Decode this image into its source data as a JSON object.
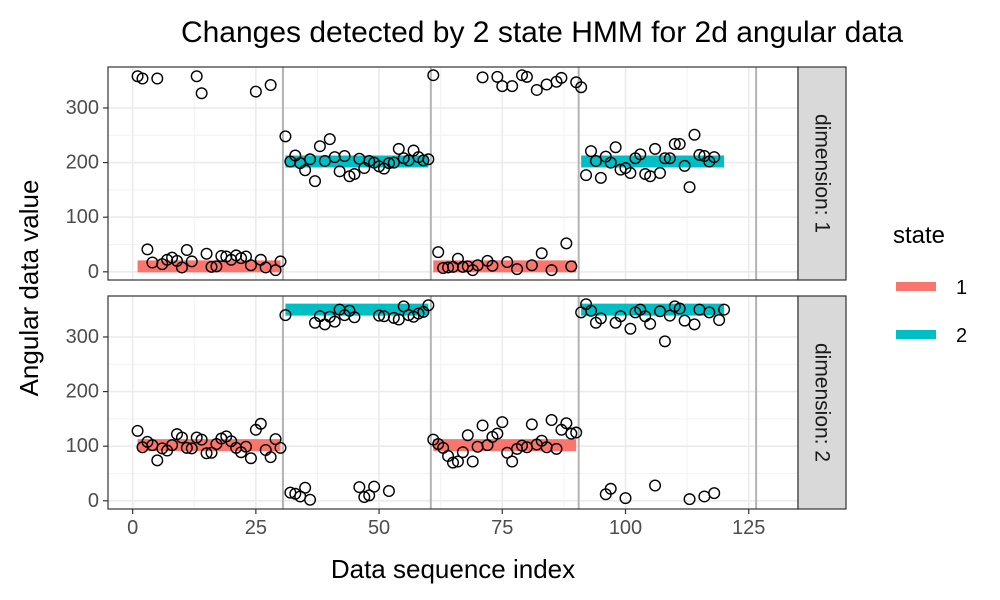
{
  "chart_data": {
    "type": "scatter",
    "title": "Changes detected by 2 state HMM for 2d angular data",
    "xlabel": "Data sequence index",
    "ylabel": "Angular data value",
    "xlim": [
      -5,
      135
    ],
    "ylim": [
      -15,
      375
    ],
    "x_ticks": [
      0,
      25,
      50,
      75,
      100,
      125
    ],
    "y_ticks": [
      0,
      100,
      200,
      300
    ],
    "grid": true,
    "legend": {
      "title": "state",
      "placement": "right",
      "entries": [
        {
          "label": "1",
          "color": "#F8766D"
        },
        {
          "label": "2",
          "color": "#00BFC4"
        }
      ]
    },
    "changepoints": [
      30.5,
      60.5,
      90.5,
      126.5
    ],
    "panels": [
      {
        "strip": "dimension: 1",
        "segments": [
          {
            "state": 1,
            "x_start": 1,
            "x_end": 30,
            "value": 10
          },
          {
            "state": 2,
            "x_start": 31,
            "x_end": 60,
            "value": 202
          },
          {
            "state": 1,
            "x_start": 61,
            "x_end": 90,
            "value": 10
          },
          {
            "state": 2,
            "x_start": 91,
            "x_end": 120,
            "value": 202
          }
        ],
        "y": [
          358,
          354,
          41,
          17,
          354,
          14,
          22,
          26,
          20,
          8,
          40,
          19,
          358,
          327,
          33,
          9,
          10,
          29,
          28,
          22,
          30,
          25,
          28,
          12,
          330,
          22,
          8,
          342,
          3,
          19,
          248,
          202,
          213,
          199,
          186,
          206,
          166,
          230,
          203,
          243,
          210,
          184,
          212,
          175,
          179,
          207,
          190,
          203,
          200,
          193,
          189,
          199,
          200,
          225,
          208,
          204,
          222,
          210,
          204,
          206,
          360,
          36,
          7,
          8,
          9,
          24,
          9,
          10,
          3,
          12,
          356,
          20,
          11,
          357,
          340,
          18,
          340,
          5,
          360,
          357,
          12,
          333,
          34,
          343,
          3,
          348,
          355,
          52,
          10,
          347,
          338,
          177,
          221,
          203,
          172,
          211,
          200,
          228,
          187,
          190,
          181,
          208,
          215,
          179,
          175,
          225,
          181,
          208,
          208,
          234,
          234,
          194,
          155,
          251,
          214,
          212,
          202,
          210,
          null,
          null
        ]
      },
      {
        "strip": "dimension: 2",
        "segments": [
          {
            "state": 1,
            "x_start": 1,
            "x_end": 30,
            "value": 102
          },
          {
            "state": 2,
            "x_start": 31,
            "x_end": 60,
            "value": 350
          },
          {
            "state": 1,
            "x_start": 61,
            "x_end": 90,
            "value": 102
          },
          {
            "state": 2,
            "x_start": 91,
            "x_end": 120,
            "value": 350
          }
        ],
        "y": [
          128,
          98,
          108,
          102,
          74,
          96,
          92,
          102,
          122,
          116,
          97,
          96,
          116,
          112,
          87,
          88,
          104,
          114,
          118,
          109,
          97,
          89,
          99,
          78,
          130,
          141,
          93,
          80,
          113,
          97,
          340,
          15,
          13,
          8,
          24,
          2,
          326,
          338,
          323,
          337,
          328,
          350,
          340,
          348,
          336,
          25,
          7,
          10,
          26,
          339,
          338,
          18,
          335,
          332,
          356,
          340,
          337,
          343,
          346,
          358,
          112,
          104,
          97,
          82,
          70,
          72,
          89,
          120,
          72,
          99,
          138,
          102,
          117,
          123,
          144,
          88,
          72,
          95,
          101,
          98,
          140,
          103,
          110,
          98,
          148,
          95,
          130,
          142,
          123,
          125,
          345,
          360,
          348,
          326,
          334,
          12,
          22,
          326,
          338,
          5,
          315,
          345,
          350,
          338,
          324,
          28,
          347,
          292,
          339,
          356,
          352,
          330,
          3,
          323,
          350,
          8,
          345,
          14,
          331,
          350
        ]
      }
    ]
  }
}
